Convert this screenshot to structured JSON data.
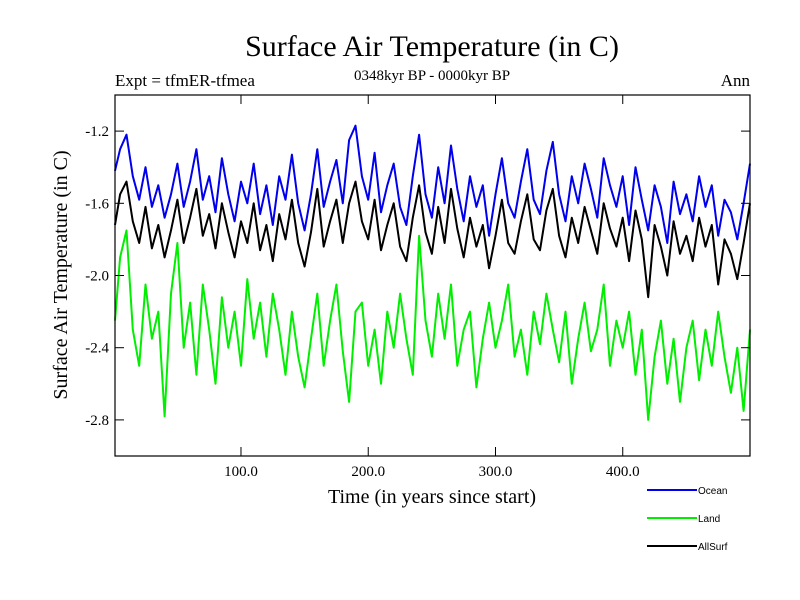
{
  "chart_data": {
    "type": "line",
    "title": "Surface Air Temperature (in C)",
    "subtitle_left": "Expt = tfmER-tfmea",
    "subtitle_center": "0348kyr BP - 0000kyr BP",
    "subtitle_right": "Ann",
    "xlabel": "Time (in years since start)",
    "ylabel": "Surface Air Temperature (in C)",
    "xlim": [
      1,
      500
    ],
    "ylim": [
      -3.0,
      -1.0
    ],
    "xticks": [
      100,
      200,
      300,
      400
    ],
    "xtick_labels": [
      "100.0",
      "200.0",
      "300.0",
      "400.0"
    ],
    "yticks": [
      -1.2,
      -1.6,
      -2.0,
      -2.4,
      -2.8
    ],
    "ytick_labels": [
      "-1.2",
      "-1.6",
      "-2.0",
      "-2.4",
      "-2.8"
    ],
    "legend_position": "bottom-right",
    "series": [
      {
        "name": "Ocean",
        "color": "#0000ee",
        "x": [
          1,
          5,
          10,
          15,
          20,
          25,
          30,
          35,
          40,
          45,
          50,
          55,
          60,
          65,
          70,
          75,
          80,
          85,
          90,
          95,
          100,
          105,
          110,
          115,
          120,
          125,
          130,
          135,
          140,
          145,
          150,
          155,
          160,
          165,
          170,
          175,
          180,
          185,
          190,
          195,
          200,
          205,
          210,
          215,
          220,
          225,
          230,
          235,
          240,
          245,
          250,
          255,
          260,
          265,
          270,
          275,
          280,
          285,
          290,
          295,
          300,
          305,
          310,
          315,
          320,
          325,
          330,
          335,
          340,
          345,
          350,
          355,
          360,
          365,
          370,
          375,
          380,
          385,
          390,
          395,
          400,
          405,
          410,
          415,
          420,
          425,
          430,
          435,
          440,
          445,
          450,
          455,
          460,
          465,
          470,
          475,
          480,
          485,
          490,
          495,
          500
        ],
        "values": [
          -1.42,
          -1.3,
          -1.22,
          -1.45,
          -1.58,
          -1.4,
          -1.62,
          -1.5,
          -1.68,
          -1.55,
          -1.38,
          -1.62,
          -1.48,
          -1.3,
          -1.58,
          -1.45,
          -1.65,
          -1.35,
          -1.55,
          -1.7,
          -1.48,
          -1.6,
          -1.38,
          -1.66,
          -1.5,
          -1.72,
          -1.45,
          -1.58,
          -1.33,
          -1.6,
          -1.75,
          -1.55,
          -1.3,
          -1.62,
          -1.48,
          -1.36,
          -1.6,
          -1.25,
          -1.17,
          -1.45,
          -1.58,
          -1.32,
          -1.65,
          -1.5,
          -1.38,
          -1.62,
          -1.72,
          -1.45,
          -1.22,
          -1.55,
          -1.68,
          -1.4,
          -1.6,
          -1.28,
          -1.52,
          -1.7,
          -1.45,
          -1.62,
          -1.5,
          -1.78,
          -1.55,
          -1.35,
          -1.6,
          -1.68,
          -1.48,
          -1.3,
          -1.58,
          -1.66,
          -1.42,
          -1.26,
          -1.55,
          -1.7,
          -1.45,
          -1.6,
          -1.38,
          -1.52,
          -1.68,
          -1.35,
          -1.5,
          -1.62,
          -1.45,
          -1.72,
          -1.4,
          -1.58,
          -1.75,
          -1.5,
          -1.62,
          -1.82,
          -1.48,
          -1.66,
          -1.55,
          -1.7,
          -1.45,
          -1.62,
          -1.5,
          -1.78,
          -1.58,
          -1.65,
          -1.8,
          -1.6,
          -1.38
        ]
      },
      {
        "name": "Land",
        "color": "#00ee00",
        "x": [
          1,
          5,
          10,
          15,
          20,
          25,
          30,
          35,
          40,
          45,
          50,
          55,
          60,
          65,
          70,
          75,
          80,
          85,
          90,
          95,
          100,
          105,
          110,
          115,
          120,
          125,
          130,
          135,
          140,
          145,
          150,
          155,
          160,
          165,
          170,
          175,
          180,
          185,
          190,
          195,
          200,
          205,
          210,
          215,
          220,
          225,
          230,
          235,
          240,
          245,
          250,
          255,
          260,
          265,
          270,
          275,
          280,
          285,
          290,
          295,
          300,
          305,
          310,
          315,
          320,
          325,
          330,
          335,
          340,
          345,
          350,
          355,
          360,
          365,
          370,
          375,
          380,
          385,
          390,
          395,
          400,
          405,
          410,
          415,
          420,
          425,
          430,
          435,
          440,
          445,
          450,
          455,
          460,
          465,
          470,
          475,
          480,
          485,
          490,
          495,
          500
        ],
        "values": [
          -2.25,
          -1.9,
          -1.75,
          -2.3,
          -2.5,
          -2.05,
          -2.35,
          -2.2,
          -2.78,
          -2.1,
          -1.82,
          -2.4,
          -2.15,
          -2.55,
          -2.05,
          -2.3,
          -2.6,
          -2.12,
          -2.4,
          -2.2,
          -2.5,
          -2.02,
          -2.35,
          -2.15,
          -2.45,
          -2.1,
          -2.3,
          -2.55,
          -2.2,
          -2.45,
          -2.62,
          -2.35,
          -2.1,
          -2.5,
          -2.25,
          -2.05,
          -2.42,
          -2.7,
          -2.2,
          -2.15,
          -2.5,
          -2.3,
          -2.6,
          -2.2,
          -2.4,
          -2.1,
          -2.35,
          -2.55,
          -1.78,
          -2.25,
          -2.45,
          -2.1,
          -2.35,
          -2.05,
          -2.5,
          -2.3,
          -2.2,
          -2.62,
          -2.35,
          -2.15,
          -2.4,
          -2.25,
          -2.05,
          -2.45,
          -2.3,
          -2.55,
          -2.2,
          -2.38,
          -2.1,
          -2.3,
          -2.48,
          -2.2,
          -2.6,
          -2.35,
          -2.15,
          -2.42,
          -2.3,
          -2.05,
          -2.5,
          -2.25,
          -2.4,
          -2.2,
          -2.55,
          -2.3,
          -2.8,
          -2.45,
          -2.25,
          -2.6,
          -2.35,
          -2.7,
          -2.4,
          -2.25,
          -2.58,
          -2.3,
          -2.5,
          -2.2,
          -2.45,
          -2.65,
          -2.4,
          -2.75,
          -2.3
        ]
      },
      {
        "name": "AllSurf",
        "color": "#000000",
        "x": [
          1,
          5,
          10,
          15,
          20,
          25,
          30,
          35,
          40,
          45,
          50,
          55,
          60,
          65,
          70,
          75,
          80,
          85,
          90,
          95,
          100,
          105,
          110,
          115,
          120,
          125,
          130,
          135,
          140,
          145,
          150,
          155,
          160,
          165,
          170,
          175,
          180,
          185,
          190,
          195,
          200,
          205,
          210,
          215,
          220,
          225,
          230,
          235,
          240,
          245,
          250,
          255,
          260,
          265,
          270,
          275,
          280,
          285,
          290,
          295,
          300,
          305,
          310,
          315,
          320,
          325,
          330,
          335,
          340,
          345,
          350,
          355,
          360,
          365,
          370,
          375,
          380,
          385,
          390,
          395,
          400,
          405,
          410,
          415,
          420,
          425,
          430,
          435,
          440,
          445,
          450,
          455,
          460,
          465,
          470,
          475,
          480,
          485,
          490,
          495,
          500
        ],
        "values": [
          -1.72,
          -1.55,
          -1.48,
          -1.7,
          -1.82,
          -1.62,
          -1.85,
          -1.72,
          -1.9,
          -1.75,
          -1.58,
          -1.82,
          -1.68,
          -1.52,
          -1.78,
          -1.66,
          -1.85,
          -1.6,
          -1.76,
          -1.9,
          -1.7,
          -1.82,
          -1.6,
          -1.86,
          -1.72,
          -1.92,
          -1.66,
          -1.8,
          -1.58,
          -1.82,
          -1.95,
          -1.76,
          -1.52,
          -1.84,
          -1.7,
          -1.58,
          -1.82,
          -1.6,
          -1.48,
          -1.7,
          -1.8,
          -1.58,
          -1.86,
          -1.72,
          -1.6,
          -1.84,
          -1.92,
          -1.68,
          -1.5,
          -1.76,
          -1.88,
          -1.62,
          -1.82,
          -1.52,
          -1.74,
          -1.9,
          -1.68,
          -1.84,
          -1.72,
          -1.96,
          -1.78,
          -1.58,
          -1.82,
          -1.88,
          -1.7,
          -1.55,
          -1.8,
          -1.86,
          -1.64,
          -1.52,
          -1.78,
          -1.9,
          -1.68,
          -1.82,
          -1.62,
          -1.75,
          -1.88,
          -1.6,
          -1.74,
          -1.84,
          -1.68,
          -1.92,
          -1.64,
          -1.8,
          -2.12,
          -1.72,
          -1.84,
          -2.0,
          -1.7,
          -1.88,
          -1.78,
          -1.92,
          -1.68,
          -1.84,
          -1.72,
          -2.05,
          -1.8,
          -1.88,
          -2.02,
          -1.82,
          -1.6
        ]
      }
    ]
  }
}
